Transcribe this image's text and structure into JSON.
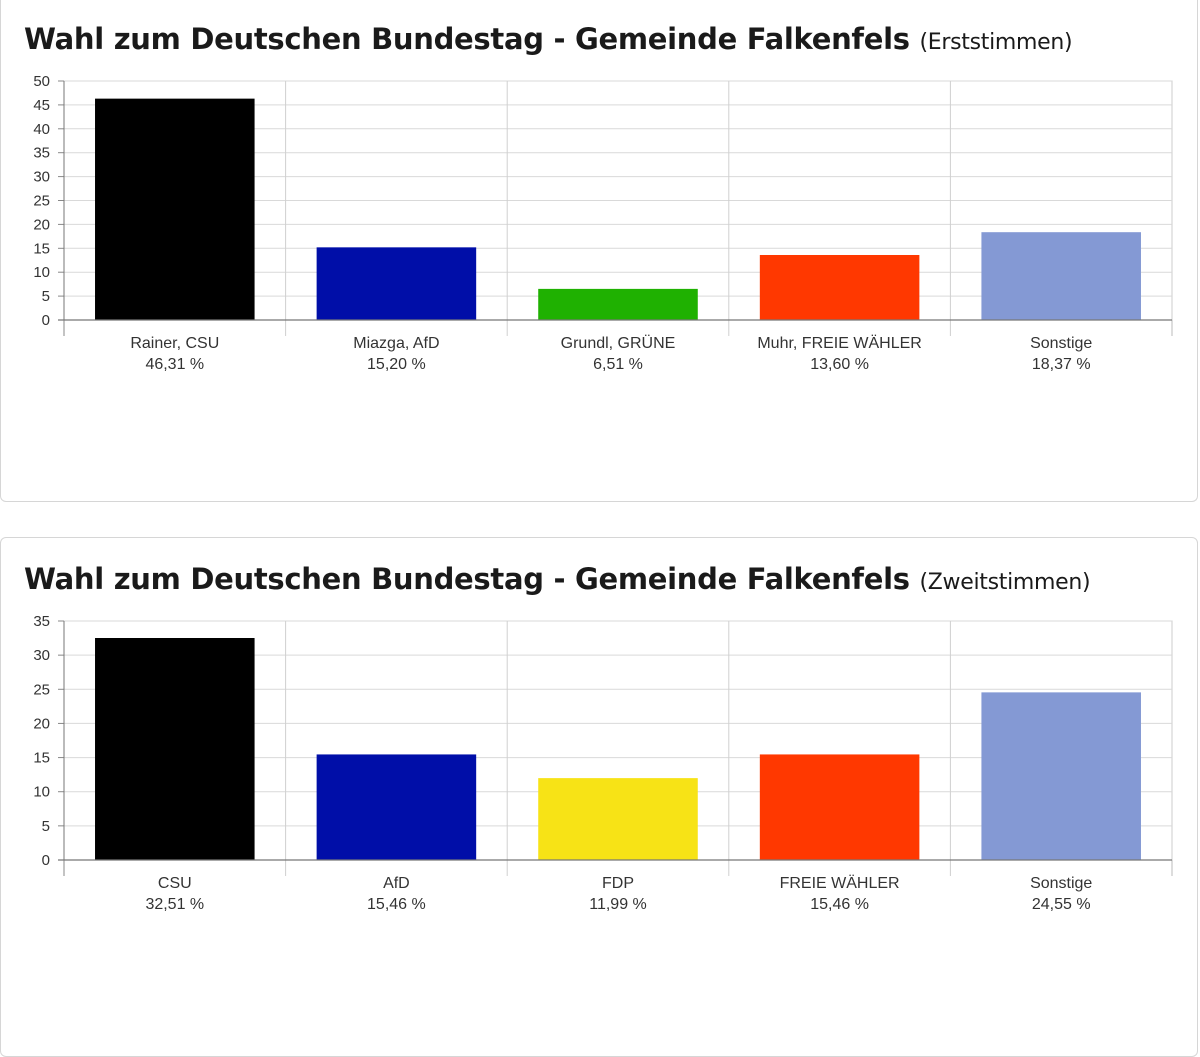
{
  "charts": [
    {
      "title": "Wahl zum Deutschen Bundestag - Gemeinde Falkenfels",
      "subtitle": "(Erststimmen)"
    },
    {
      "title": "Wahl zum Deutschen Bundestag - Gemeinde Falkenfels",
      "subtitle": "(Zweitstimmen)"
    }
  ],
  "chart_data": [
    {
      "type": "bar",
      "title": "Wahl zum Deutschen Bundestag - Gemeinde Falkenfels (Erststimmen)",
      "categories": [
        "Rainer, CSU",
        "Miazga, AfD",
        "Grundl, GRÜNE",
        "Muhr, FREIE WÄHLER",
        "Sonstige"
      ],
      "value_labels": [
        "46,31 %",
        "15,20 %",
        "6,51 %",
        "13,60 %",
        "18,37 %"
      ],
      "values": [
        46.31,
        15.2,
        6.51,
        13.6,
        18.37
      ],
      "colors": [
        "#000000",
        "#000ea8",
        "#1fb101",
        "#ff3800",
        "#8499d4"
      ],
      "yticks": [
        0,
        5,
        10,
        15,
        20,
        25,
        30,
        35,
        40,
        45,
        50
      ],
      "ylim": [
        0,
        50
      ],
      "grid": true
    },
    {
      "type": "bar",
      "title": "Wahl zum Deutschen Bundestag - Gemeinde Falkenfels (Zweitstimmen)",
      "categories": [
        "CSU",
        "AfD",
        "FDP",
        "FREIE WÄHLER",
        "Sonstige"
      ],
      "value_labels": [
        "32,51 %",
        "15,46 %",
        "11,99 %",
        "15,46 %",
        "24,55 %"
      ],
      "values": [
        32.51,
        15.46,
        11.99,
        15.46,
        24.55
      ],
      "colors": [
        "#000000",
        "#000ea8",
        "#f7e316",
        "#ff3800",
        "#8499d4"
      ],
      "yticks": [
        0,
        5,
        10,
        15,
        20,
        25,
        30,
        35
      ],
      "ylim": [
        0,
        35
      ],
      "grid": true
    }
  ]
}
